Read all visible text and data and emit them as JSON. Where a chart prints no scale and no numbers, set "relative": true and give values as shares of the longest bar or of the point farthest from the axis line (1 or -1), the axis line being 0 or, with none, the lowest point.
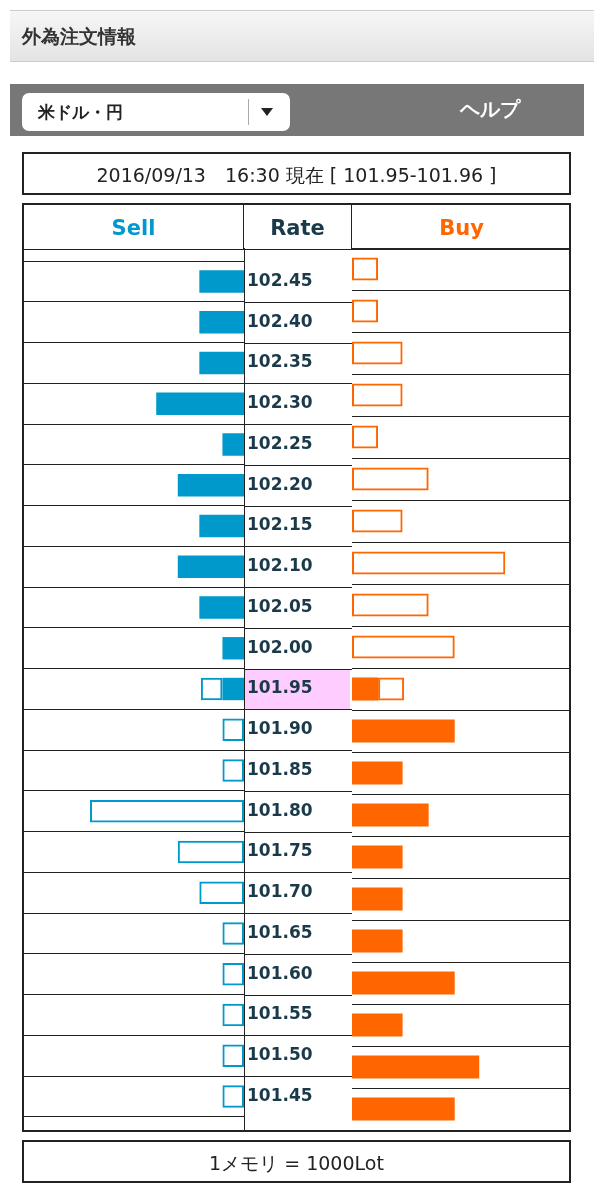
{
  "chart_data": [
    {
      "type": "bar",
      "orientation": "horizontal",
      "stacked": true,
      "relative": true,
      "title": "外為注文情報",
      "subtitle": "2016/09/13　16:30 現在 [ 101.95-101.96 ]",
      "xlabel": "Sell",
      "ylabel": "Rate",
      "annotations": [
        "米ドル・円",
        "ヘルプ",
        "1メモリ = 1000Lot"
      ],
      "categories": [
        "102.45",
        "102.40",
        "102.35",
        "102.30",
        "102.25",
        "102.20",
        "102.15",
        "102.10",
        "102.05",
        "102.00",
        "101.95",
        "101.90",
        "101.85",
        "101.80",
        "101.75",
        "101.70",
        "101.65",
        "101.60",
        "101.55",
        "101.50",
        "101.45"
      ],
      "series": [
        {
          "color": "#0099cc",
          "values": [
            0.29,
            0.29,
            0.29,
            0.57,
            0.14,
            0.43,
            0.29,
            0.43,
            0.29,
            0.14,
            0.14,
            null,
            null,
            null,
            null,
            null,
            null,
            null,
            null,
            null,
            null
          ]
        },
        {
          "color": "#0099cc",
          "values": [
            null,
            null,
            null,
            null,
            null,
            null,
            null,
            null,
            null,
            null,
            0.14,
            0.14,
            0.14,
            1,
            0.43,
            0.29,
            0.14,
            0.14,
            0.14,
            0.14,
            0.14
          ]
        }
      ],
      "grid": "y",
      "tick_labels": "y"
    },
    {
      "type": "bar",
      "orientation": "horizontal",
      "stacked": true,
      "relative": true,
      "xlabel": "Buy",
      "categories": [
        "102.45",
        "102.40",
        "102.35",
        "102.30",
        "102.25",
        "102.20",
        "102.15",
        "102.10",
        "102.05",
        "102.00",
        "101.95",
        "101.90",
        "101.85",
        "101.80",
        "101.75",
        "101.70",
        "101.65",
        "101.60",
        "101.55",
        "101.50",
        "101.45"
      ],
      "series": [
        {
          "color": "#ff6600",
          "values": [
            null,
            null,
            null,
            null,
            null,
            null,
            null,
            null,
            null,
            null,
            0.17,
            0.67,
            0.33,
            0.5,
            0.33,
            0.33,
            0.33,
            0.67,
            0.33,
            0.83,
            0.67
          ]
        },
        {
          "color": "#ff6600",
          "values": [
            0.17,
            0.17,
            0.33,
            0.33,
            0.17,
            0.5,
            0.33,
            1,
            0.5,
            0.67,
            0.17,
            null,
            null,
            null,
            null,
            null,
            null,
            null,
            null,
            null,
            null
          ]
        }
      ],
      "grid": "y",
      "tick_labels": false
    }
  ]
}
